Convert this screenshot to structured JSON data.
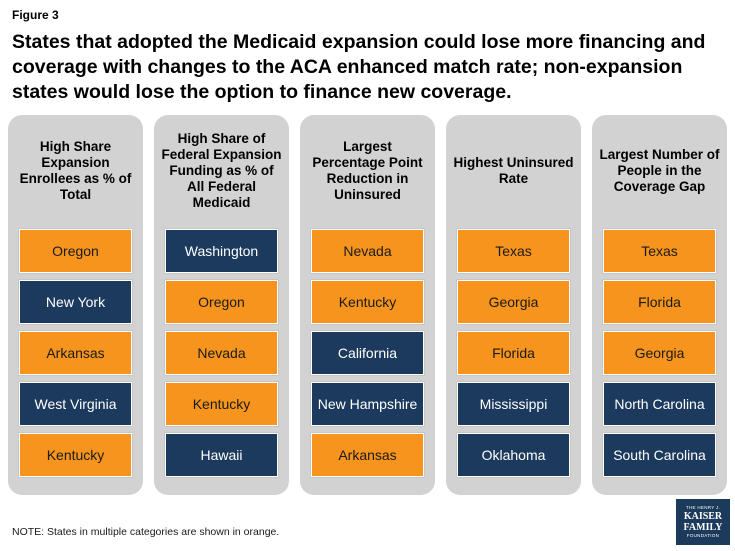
{
  "figure_label": "Figure 3",
  "headline": "States that adopted the Medicaid expansion could lose more financing and coverage with changes to the ACA enhanced match rate; non-expansion states would lose the option to finance new coverage.",
  "colors": {
    "orange": "#f7941d",
    "navy": "#1c3a5d",
    "panel": "#d3d2d2"
  },
  "columns": [
    {
      "header": "High Share Expansion Enrollees as % of Total",
      "states": [
        {
          "name": "Oregon",
          "color": "orange"
        },
        {
          "name": "New York",
          "color": "navy"
        },
        {
          "name": "Arkansas",
          "color": "orange"
        },
        {
          "name": "West Virginia",
          "color": "navy"
        },
        {
          "name": "Kentucky",
          "color": "orange"
        }
      ]
    },
    {
      "header": "High Share of Federal Expansion Funding as % of All Federal Medicaid",
      "states": [
        {
          "name": "Washington",
          "color": "navy"
        },
        {
          "name": "Oregon",
          "color": "orange"
        },
        {
          "name": "Nevada",
          "color": "orange"
        },
        {
          "name": "Kentucky",
          "color": "orange"
        },
        {
          "name": "Hawaii",
          "color": "navy"
        }
      ]
    },
    {
      "header": "Largest Percentage Point Reduction in Uninsured",
      "states": [
        {
          "name": "Nevada",
          "color": "orange"
        },
        {
          "name": "Kentucky",
          "color": "orange"
        },
        {
          "name": "California",
          "color": "navy"
        },
        {
          "name": "New Hampshire",
          "color": "navy"
        },
        {
          "name": "Arkansas",
          "color": "orange"
        }
      ]
    },
    {
      "header": "Highest Uninsured Rate",
      "states": [
        {
          "name": "Texas",
          "color": "orange"
        },
        {
          "name": "Georgia",
          "color": "orange"
        },
        {
          "name": "Florida",
          "color": "orange"
        },
        {
          "name": "Mississippi",
          "color": "navy"
        },
        {
          "name": "Oklahoma",
          "color": "navy"
        }
      ]
    },
    {
      "header": "Largest Number of People in the Coverage Gap",
      "states": [
        {
          "name": "Texas",
          "color": "orange"
        },
        {
          "name": "Florida",
          "color": "orange"
        },
        {
          "name": "Georgia",
          "color": "orange"
        },
        {
          "name": "North Carolina",
          "color": "navy"
        },
        {
          "name": "South Carolina",
          "color": "navy"
        }
      ]
    }
  ],
  "note": "NOTE: States in multiple categories are shown in orange.",
  "logo": {
    "line1": "THE HENRY J.",
    "line2": "KAISER",
    "line3": "FAMILY",
    "line4": "FOUNDATION"
  }
}
